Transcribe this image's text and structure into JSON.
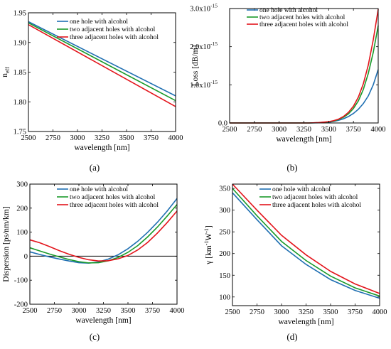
{
  "colors": {
    "blue": "#1f6fb2",
    "green": "#1a9a2a",
    "red": "#e3141b",
    "zero_line": "#000000"
  },
  "chart_data": [
    {
      "id": "a",
      "panel_label": "(a)",
      "type": "line",
      "xlabel": "wavelength [nm]",
      "ylabel": "n",
      "ylabel_sub": "eff",
      "xlim": [
        2500,
        4000
      ],
      "ylim": [
        1.75,
        1.95
      ],
      "xticks": [
        2500,
        2750,
        3000,
        3250,
        3500,
        3750,
        4000
      ],
      "yticks": [
        1.75,
        1.8,
        1.85,
        1.9,
        1.95
      ],
      "ytick_labels": [
        "1.75",
        "1.80",
        "1.85",
        "1.90",
        "1.95"
      ],
      "legend": "top-right",
      "series": [
        {
          "name": "one hole with alcohol",
          "color": "#1f6fb2",
          "x": [
            2500,
            4000
          ],
          "y": [
            1.935,
            1.81
          ]
        },
        {
          "name": "two adjacent holes with alcohol",
          "color": "#1a9a2a",
          "x": [
            2500,
            4000
          ],
          "y": [
            1.933,
            1.802
          ]
        },
        {
          "name": "three adjacent holes with alcohol",
          "color": "#e3141b",
          "x": [
            2500,
            4000
          ],
          "y": [
            1.93,
            1.792
          ]
        }
      ]
    },
    {
      "id": "b",
      "panel_label": "(b)",
      "type": "line",
      "xlabel": "wavelength [nm]",
      "ylabel": "Loss [dB/m]",
      "xlim": [
        2500,
        4000
      ],
      "ylim": [
        0,
        3e-15
      ],
      "xticks": [
        2500,
        2750,
        3000,
        3250,
        3500,
        3750,
        4000
      ],
      "yticks": [
        0,
        1e-15,
        2e-15,
        3e-15
      ],
      "ytick_labels": [
        "0.0",
        "1.0x10",
        "2.0x10",
        "3.0x10"
      ],
      "ytick_exponents": [
        "",
        "-15",
        "-15",
        "-15"
      ],
      "legend": "top-right",
      "series": [
        {
          "name": "one hole with alcohol",
          "color": "#1f6fb2",
          "x": [
            2500,
            3300,
            3400,
            3500,
            3550,
            3600,
            3650,
            3700,
            3750,
            3800,
            3850,
            3900,
            3950,
            4000
          ],
          "y": [
            0,
            0,
            5e-18,
            2e-17,
            4e-17,
            7e-17,
            1.1e-16,
            1.7e-16,
            2.5e-16,
            3.6e-16,
            5.1e-16,
            7.1e-16,
            1e-15,
            1.4e-15
          ]
        },
        {
          "name": "two adjacent holes with alcohol",
          "color": "#1a9a2a",
          "x": [
            2500,
            3300,
            3400,
            3500,
            3550,
            3600,
            3650,
            3700,
            3750,
            3800,
            3850,
            3900,
            3950,
            4000
          ],
          "y": [
            0,
            0,
            8e-18,
            3e-17,
            5e-17,
            9e-17,
            1.5e-16,
            2.4e-16,
            3.8e-16,
            5.8e-16,
            8.8e-16,
            1.3e-15,
            1.85e-15,
            2.55e-15
          ]
        },
        {
          "name": "three adjacent holes with alcohol",
          "color": "#e3141b",
          "x": [
            2500,
            3300,
            3400,
            3500,
            3550,
            3600,
            3650,
            3700,
            3750,
            3800,
            3850,
            3900,
            3950,
            4000
          ],
          "y": [
            0,
            0,
            1e-17,
            3.5e-17,
            6e-17,
            1e-16,
            1.7e-16,
            2.8e-16,
            4.4e-16,
            6.8e-16,
            1.03e-15,
            1.52e-15,
            2.18e-15,
            2.98e-15
          ]
        }
      ]
    },
    {
      "id": "c",
      "panel_label": "(c)",
      "type": "line",
      "xlabel": "wavelength [nm]",
      "ylabel": "Dispersion [ps/nm/km]",
      "xlim": [
        2500,
        4000
      ],
      "ylim": [
        -200,
        300
      ],
      "xticks": [
        2500,
        2750,
        3000,
        3250,
        3500,
        3750,
        4000
      ],
      "yticks": [
        -200,
        -100,
        0,
        100,
        200,
        300
      ],
      "ytick_labels": [
        "-200",
        "-100",
        "0",
        "100",
        "200",
        "300"
      ],
      "zero_line": true,
      "legend": "top-right",
      "series": [
        {
          "name": "one hole with alcohol",
          "color": "#1f6fb2",
          "x": [
            2500,
            2600,
            2700,
            2800,
            2900,
            3000,
            3100,
            3200,
            3300,
            3400,
            3500,
            3600,
            3700,
            3800,
            3900,
            4000
          ],
          "y": [
            18,
            7,
            -3,
            -12,
            -20,
            -27,
            -29,
            -24,
            -12,
            6,
            31,
            62,
            99,
            141,
            188,
            240
          ]
        },
        {
          "name": "two adjacent holes with alcohol",
          "color": "#1a9a2a",
          "x": [
            2500,
            2600,
            2700,
            2800,
            2900,
            3000,
            3100,
            3200,
            3300,
            3400,
            3500,
            3600,
            3700,
            3800,
            3900,
            4000
          ],
          "y": [
            35,
            22,
            9,
            -3,
            -14,
            -23,
            -28,
            -27,
            -19,
            -5,
            16,
            44,
            80,
            121,
            167,
            215
          ]
        },
        {
          "name": "three adjacent holes with alcohol",
          "color": "#e3141b",
          "x": [
            2500,
            2600,
            2700,
            2800,
            2900,
            3000,
            3100,
            3200,
            3300,
            3400,
            3500,
            3600,
            3700,
            3800,
            3900,
            4000
          ],
          "y": [
            68,
            56,
            40,
            23,
            8,
            -5,
            -15,
            -20,
            -19,
            -11,
            3,
            26,
            57,
            96,
            140,
            188
          ]
        }
      ]
    },
    {
      "id": "d",
      "panel_label": "(d)",
      "type": "line",
      "xlabel": "wavelength [nm]",
      "ylabel": "γ [km",
      "ylabel_sup1": "-1",
      "ylabel_mid": "W",
      "ylabel_sup2": "-1",
      "ylabel_end": "]",
      "xlim": [
        2500,
        4000
      ],
      "ylim": [
        80,
        360
      ],
      "xticks": [
        2500,
        2750,
        3000,
        3250,
        3500,
        3750,
        4000
      ],
      "yticks": [
        100,
        150,
        200,
        250,
        300,
        350
      ],
      "ytick_labels": [
        "100",
        "150",
        "200",
        "250",
        "300",
        "350"
      ],
      "legend": "top-right",
      "series": [
        {
          "name": "one hole with alcohol",
          "color": "#1f6fb2",
          "x": [
            2500,
            2750,
            3000,
            3250,
            3500,
            3750,
            4000
          ],
          "y": [
            340,
            278,
            218,
            175,
            140,
            115,
            97
          ]
        },
        {
          "name": "two adjacent holes with alcohol",
          "color": "#1a9a2a",
          "x": [
            2500,
            2750,
            3000,
            3250,
            3500,
            3750,
            4000
          ],
          "y": [
            350,
            287,
            228,
            184,
            148,
            121,
            102
          ]
        },
        {
          "name": "three adjacent holes with alcohol",
          "color": "#e3141b",
          "x": [
            2500,
            2750,
            3000,
            3250,
            3500,
            3750,
            4000
          ],
          "y": [
            360,
            300,
            242,
            197,
            159,
            130,
            108
          ]
        }
      ]
    }
  ]
}
